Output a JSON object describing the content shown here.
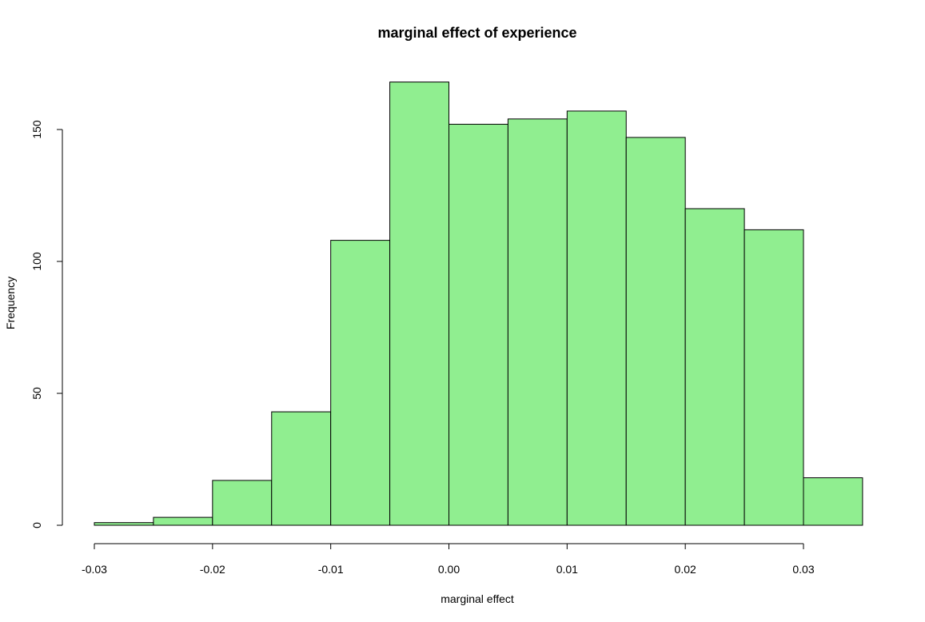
{
  "chart_data": {
    "type": "bar",
    "subtype": "histogram",
    "title": "marginal effect of experience",
    "xlabel": "marginal effect",
    "ylabel": "Frequency",
    "bar_color": "#90EE90",
    "edge_color": "#000000",
    "bins": [
      {
        "start": -0.03,
        "end": -0.025,
        "count": 1
      },
      {
        "start": -0.025,
        "end": -0.02,
        "count": 3
      },
      {
        "start": -0.02,
        "end": -0.015,
        "count": 17
      },
      {
        "start": -0.015,
        "end": -0.01,
        "count": 43
      },
      {
        "start": -0.01,
        "end": -0.005,
        "count": 108
      },
      {
        "start": -0.005,
        "end": 0.0,
        "count": 168
      },
      {
        "start": 0.0,
        "end": 0.005,
        "count": 152
      },
      {
        "start": 0.005,
        "end": 0.01,
        "count": 154
      },
      {
        "start": 0.01,
        "end": 0.015,
        "count": 157
      },
      {
        "start": 0.015,
        "end": 0.02,
        "count": 147
      },
      {
        "start": 0.02,
        "end": 0.025,
        "count": 120
      },
      {
        "start": 0.025,
        "end": 0.03,
        "count": 112
      },
      {
        "start": 0.03,
        "end": 0.035,
        "count": 18
      }
    ],
    "xlim": [
      -0.03,
      0.035
    ],
    "ylim": [
      0,
      168
    ],
    "xticks": [
      -0.03,
      -0.02,
      -0.01,
      0.0,
      0.01,
      0.02,
      0.03
    ],
    "xtick_labels": [
      "-0.03",
      "-0.02",
      "-0.01",
      "0.00",
      "0.01",
      "0.02",
      "0.03"
    ],
    "yticks": [
      0,
      50,
      100,
      150
    ],
    "ytick_labels": [
      "0",
      "50",
      "100",
      "150"
    ],
    "grid": false,
    "legend": "none"
  }
}
